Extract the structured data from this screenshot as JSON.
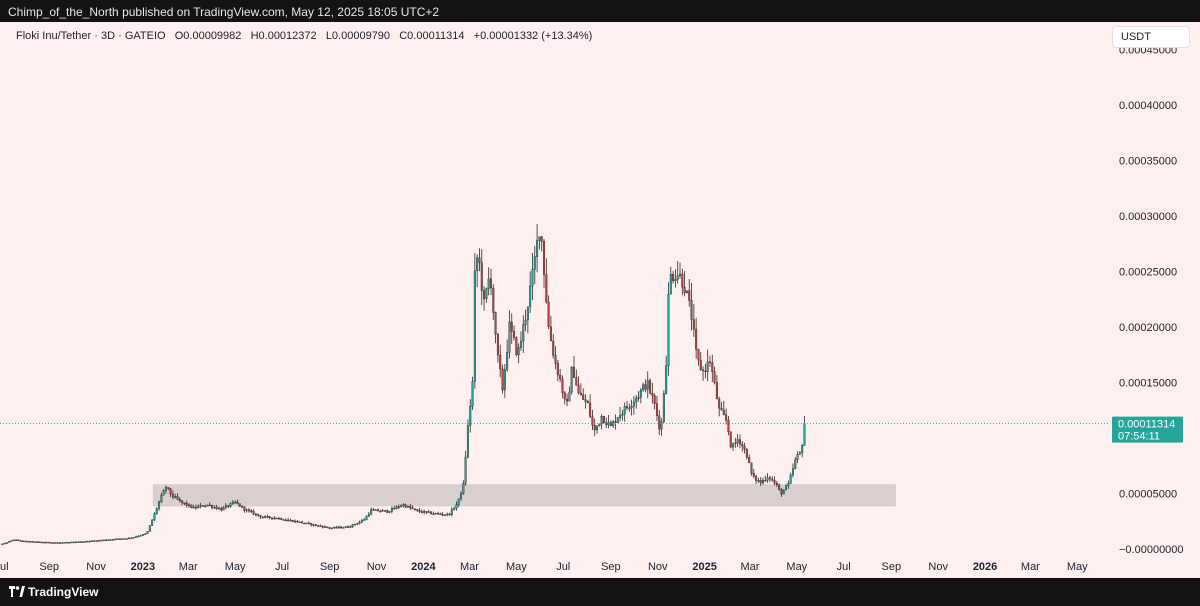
{
  "header": {
    "publisher_line": "Chimp_of_the_North published on TradingView.com, May 12, 2025 18:05 UTC+2"
  },
  "legend": {
    "symbol": "Floki Inu/Tether · 3D · GATEIO",
    "open": "O0.00009982",
    "high": "H0.00012372",
    "low": "L0.00009790",
    "close": "C0.00011314",
    "change": "+0.00001332 (+13.34%)"
  },
  "currency_label": "USDT",
  "last_price": {
    "value": "0.00011314",
    "countdown": "07:54:11",
    "color": "#26a69a"
  },
  "footer": {
    "brand": "TradingView"
  },
  "colors": {
    "background": "#fdf0ef",
    "up": "#26a69a",
    "down": "#c04040",
    "wick": "#2a2a2a",
    "support_zone": "#d4cccb"
  },
  "chart_data": {
    "type": "candlestick",
    "symbol": "Floki Inu/Tether",
    "timeframe": "3D",
    "exchange": "GATEIO",
    "ylim": [
      -8e-06,
      0.000475
    ],
    "y_ticks": [
      {
        "value": 0,
        "label": "−0.00000000"
      },
      {
        "value": 5e-05,
        "label": "0.00005000"
      },
      {
        "value": 0.0001,
        "label": "0.00010000"
      },
      {
        "value": 0.00015,
        "label": "0.00015000"
      },
      {
        "value": 0.0002,
        "label": "0.00020000"
      },
      {
        "value": 0.00025,
        "label": "0.00025000"
      },
      {
        "value": 0.0003,
        "label": "0.00030000"
      },
      {
        "value": 0.00035,
        "label": "0.00035000"
      },
      {
        "value": 0.0004,
        "label": "0.00040000"
      },
      {
        "value": 0.00045,
        "label": "0.00045000"
      }
    ],
    "x_start": "2022-06-29",
    "x_end": "2026-06-10",
    "x_ticks": [
      {
        "date": "2022-07-01",
        "label": "Jul",
        "bold": false
      },
      {
        "date": "2022-09-01",
        "label": "Sep",
        "bold": false
      },
      {
        "date": "2022-11-01",
        "label": "Nov",
        "bold": false
      },
      {
        "date": "2023-01-01",
        "label": "2023",
        "bold": true
      },
      {
        "date": "2023-03-01",
        "label": "Mar",
        "bold": false
      },
      {
        "date": "2023-05-01",
        "label": "May",
        "bold": false
      },
      {
        "date": "2023-07-01",
        "label": "Jul",
        "bold": false
      },
      {
        "date": "2023-09-01",
        "label": "Sep",
        "bold": false
      },
      {
        "date": "2023-11-01",
        "label": "Nov",
        "bold": false
      },
      {
        "date": "2024-01-01",
        "label": "2024",
        "bold": true
      },
      {
        "date": "2024-03-01",
        "label": "Mar",
        "bold": false
      },
      {
        "date": "2024-05-01",
        "label": "May",
        "bold": false
      },
      {
        "date": "2024-07-01",
        "label": "Jul",
        "bold": false
      },
      {
        "date": "2024-09-01",
        "label": "Sep",
        "bold": false
      },
      {
        "date": "2024-11-01",
        "label": "Nov",
        "bold": false
      },
      {
        "date": "2025-01-01",
        "label": "2025",
        "bold": true
      },
      {
        "date": "2025-03-01",
        "label": "Mar",
        "bold": false
      },
      {
        "date": "2025-05-01",
        "label": "May",
        "bold": false
      },
      {
        "date": "2025-07-01",
        "label": "Jul",
        "bold": false
      },
      {
        "date": "2025-09-01",
        "label": "Sep",
        "bold": false
      },
      {
        "date": "2025-11-01",
        "label": "Nov",
        "bold": false
      },
      {
        "date": "2026-01-01",
        "label": "2026",
        "bold": true
      },
      {
        "date": "2026-03-01",
        "label": "Mar",
        "bold": false
      },
      {
        "date": "2026-05-01",
        "label": "May",
        "bold": false
      }
    ],
    "support_zone": {
      "from_date": "2023-01-14",
      "to_date": "2025-09-07",
      "low": 3.85e-05,
      "high": 5.85e-05
    },
    "last_price": 0.00011314,
    "price_path": [
      [
        "2022-06-29",
        4e-06
      ],
      [
        "2022-07-08",
        6e-06
      ],
      [
        "2022-07-17",
        8.5e-06
      ],
      [
        "2022-07-29",
        7.2e-06
      ],
      [
        "2022-08-15",
        6.5e-06
      ],
      [
        "2022-09-15",
        5.8e-06
      ],
      [
        "2022-10-15",
        6.8e-06
      ],
      [
        "2022-11-15",
        8.5e-06
      ],
      [
        "2022-12-15",
        1e-05
      ],
      [
        "2023-01-06",
        1.4e-05
      ],
      [
        "2023-01-14",
        2.8e-05
      ],
      [
        "2023-01-24",
        4.6e-05
      ],
      [
        "2023-01-31",
        5.6e-05
      ],
      [
        "2023-02-08",
        4.8e-05
      ],
      [
        "2023-02-20",
        4.2e-05
      ],
      [
        "2023-03-08",
        3.7e-05
      ],
      [
        "2023-03-25",
        4e-05
      ],
      [
        "2023-04-13",
        3.6e-05
      ],
      [
        "2023-05-01",
        4.2e-05
      ],
      [
        "2023-05-15",
        3.5e-05
      ],
      [
        "2023-06-05",
        2.9e-05
      ],
      [
        "2023-06-25",
        2.8e-05
      ],
      [
        "2023-07-18",
        2.5e-05
      ],
      [
        "2023-08-10",
        2.2e-05
      ],
      [
        "2023-09-01",
        1.9e-05
      ],
      [
        "2023-09-25",
        2e-05
      ],
      [
        "2023-10-15",
        2.6e-05
      ],
      [
        "2023-10-25",
        3.5e-05
      ],
      [
        "2023-11-15",
        3.4e-05
      ],
      [
        "2023-12-05",
        4e-05
      ],
      [
        "2023-12-25",
        3.4e-05
      ],
      [
        "2024-01-15",
        3.2e-05
      ],
      [
        "2024-02-03",
        3.1e-05
      ],
      [
        "2024-02-15",
        4.2e-05
      ],
      [
        "2024-02-22",
        5.8e-05
      ],
      [
        "2024-02-28",
        0.00011
      ],
      [
        "2024-03-05",
        0.00015
      ],
      [
        "2024-03-08",
        0.000245
      ],
      [
        "2024-03-12",
        0.000268
      ],
      [
        "2024-03-20",
        0.00022
      ],
      [
        "2024-03-28",
        0.00025
      ],
      [
        "2024-04-05",
        0.00018
      ],
      [
        "2024-04-13",
        0.000145
      ],
      [
        "2024-04-22",
        0.0002
      ],
      [
        "2024-05-03",
        0.000175
      ],
      [
        "2024-05-13",
        0.00021
      ],
      [
        "2024-05-23",
        0.00025
      ],
      [
        "2024-06-01",
        0.000295
      ],
      [
        "2024-06-05",
        0.00026
      ],
      [
        "2024-06-12",
        0.0002
      ],
      [
        "2024-06-20",
        0.00017
      ],
      [
        "2024-06-28",
        0.00015
      ],
      [
        "2024-07-05",
        0.000125
      ],
      [
        "2024-07-13",
        0.000165
      ],
      [
        "2024-07-21",
        0.00014
      ],
      [
        "2024-08-02",
        0.00013
      ],
      [
        "2024-08-10",
        0.000105
      ],
      [
        "2024-08-20",
        0.00012
      ],
      [
        "2024-09-01",
        0.00011
      ],
      [
        "2024-09-10",
        0.00012
      ],
      [
        "2024-09-25",
        0.00013
      ],
      [
        "2024-10-08",
        0.00014
      ],
      [
        "2024-10-18",
        0.00015
      ],
      [
        "2024-10-28",
        0.00013
      ],
      [
        "2024-11-05",
        0.000105
      ],
      [
        "2024-11-12",
        0.00017
      ],
      [
        "2024-11-16",
        0.000245
      ],
      [
        "2024-11-26",
        0.00025
      ],
      [
        "2024-12-05",
        0.00024
      ],
      [
        "2024-12-15",
        0.00021
      ],
      [
        "2024-12-22",
        0.00017
      ],
      [
        "2024-12-30",
        0.00016
      ],
      [
        "2025-01-08",
        0.00017
      ],
      [
        "2025-01-20",
        0.000125
      ],
      [
        "2025-01-30",
        0.000115
      ],
      [
        "2025-02-05",
        9e-05
      ],
      [
        "2025-02-14",
        0.0001
      ],
      [
        "2025-02-25",
        8.5e-05
      ],
      [
        "2025-03-04",
        6.5e-05
      ],
      [
        "2025-03-15",
        6e-05
      ],
      [
        "2025-03-25",
        6.6e-05
      ],
      [
        "2025-04-05",
        5.7e-05
      ],
      [
        "2025-04-10",
        5e-05
      ],
      [
        "2025-04-20",
        5.8e-05
      ],
      [
        "2025-04-30",
        8.2e-05
      ],
      [
        "2025-05-06",
        8.7e-05
      ],
      [
        "2025-05-12",
        0.0001131
      ]
    ]
  }
}
